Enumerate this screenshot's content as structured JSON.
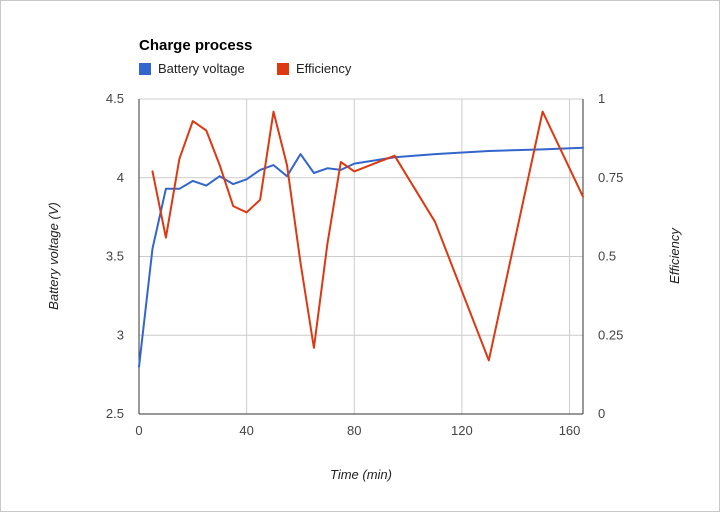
{
  "chart_data": {
    "type": "line",
    "title": "Charge process",
    "xlabel": "Time (min)",
    "ylabel_left": "Battery voltage (V)",
    "ylabel_right": "Efficiency",
    "xlim": [
      0,
      165
    ],
    "ylim_left": [
      2.5,
      4.5
    ],
    "ylim_right": [
      0,
      1
    ],
    "x_ticks": [
      0,
      40,
      80,
      120,
      160
    ],
    "y_ticks_left": [
      "2.5",
      "3",
      "3.5",
      "4",
      "4.5"
    ],
    "y_ticks_right": [
      "0",
      "0.25",
      "0.5",
      "0.75",
      "1"
    ],
    "grid": true,
    "legend_position": "top-left",
    "series": [
      {
        "name": "Battery voltage",
        "color": "#3366cc",
        "axis": "left",
        "points": [
          [
            0,
            2.8
          ],
          [
            5,
            3.55
          ],
          [
            10,
            3.93
          ],
          [
            15,
            3.93
          ],
          [
            20,
            3.98
          ],
          [
            25,
            3.95
          ],
          [
            30,
            4.01
          ],
          [
            35,
            3.96
          ],
          [
            40,
            3.99
          ],
          [
            45,
            4.05
          ],
          [
            50,
            4.08
          ],
          [
            55,
            4.01
          ],
          [
            60,
            4.15
          ],
          [
            65,
            4.03
          ],
          [
            70,
            4.06
          ],
          [
            75,
            4.05
          ],
          [
            80,
            4.09
          ],
          [
            95,
            4.13
          ],
          [
            110,
            4.15
          ],
          [
            130,
            4.17
          ],
          [
            150,
            4.18
          ],
          [
            165,
            4.19
          ]
        ]
      },
      {
        "name": "Efficiency",
        "color": "#dc3912",
        "axis": "right",
        "points": [
          [
            5,
            0.77
          ],
          [
            10,
            0.56
          ],
          [
            15,
            0.81
          ],
          [
            20,
            0.93
          ],
          [
            25,
            0.9
          ],
          [
            30,
            0.79
          ],
          [
            35,
            0.66
          ],
          [
            40,
            0.64
          ],
          [
            45,
            0.68
          ],
          [
            50,
            0.96
          ],
          [
            55,
            0.79
          ],
          [
            60,
            0.48
          ],
          [
            65,
            0.21
          ],
          [
            70,
            0.54
          ],
          [
            75,
            0.8
          ],
          [
            80,
            0.77
          ],
          [
            95,
            0.82
          ],
          [
            110,
            0.61
          ],
          [
            130,
            0.17
          ],
          [
            150,
            0.96
          ],
          [
            165,
            0.69
          ]
        ]
      }
    ]
  }
}
